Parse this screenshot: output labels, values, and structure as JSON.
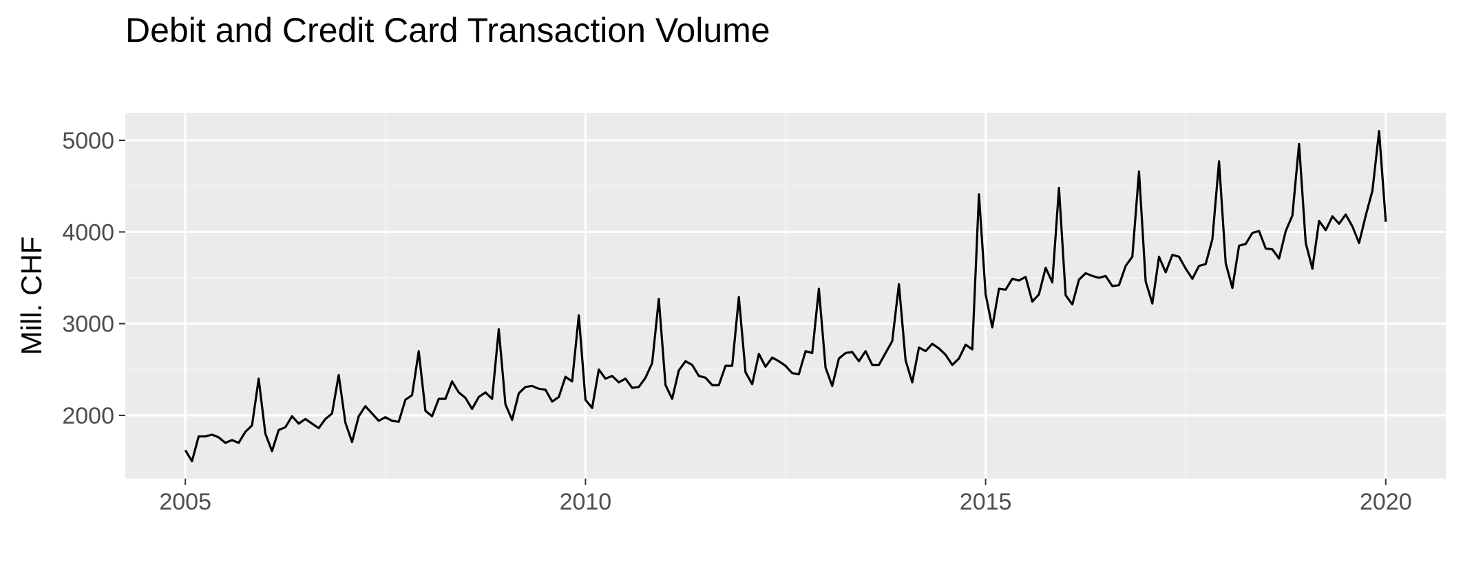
{
  "chart_data": {
    "type": "line",
    "title": "Debit and Credit Card Transaction Volume",
    "xlabel": "",
    "ylabel": "Mill. CHF",
    "x_ticks": [
      2005,
      2010,
      2015,
      2020
    ],
    "y_ticks": [
      2000,
      3000,
      4000,
      5000
    ],
    "xlim": [
      2004.25,
      2020.75
    ],
    "ylim": [
      1310,
      5300
    ],
    "grid": true,
    "legend": "none",
    "colors": {
      "panel_background": "#ebebeb",
      "grid_major": "#ffffff",
      "grid_minor": "#f5f5f5",
      "line": "#000000",
      "tick_label": "#4d4d4d",
      "tick_mark": "#333333"
    },
    "series": [
      {
        "start": "2005-01",
        "frequency": "monthly",
        "values": [
          1620,
          1500,
          1770,
          1770,
          1790,
          1760,
          1700,
          1730,
          1700,
          1820,
          1890,
          2400,
          1800,
          1610,
          1840,
          1870,
          1990,
          1910,
          1960,
          1910,
          1860,
          1960,
          2020,
          2440,
          1920,
          1710,
          1990,
          2100,
          2020,
          1940,
          1980,
          1940,
          1930,
          2170,
          2220,
          2700,
          2050,
          1990,
          2180,
          2180,
          2370,
          2250,
          2190,
          2070,
          2200,
          2250,
          2180,
          2940,
          2120,
          1950,
          2240,
          2310,
          2320,
          2290,
          2280,
          2150,
          2200,
          2420,
          2370,
          3090,
          2170,
          2080,
          2500,
          2400,
          2430,
          2360,
          2400,
          2300,
          2310,
          2410,
          2570,
          3270,
          2330,
          2180,
          2490,
          2590,
          2550,
          2430,
          2410,
          2330,
          2330,
          2540,
          2540,
          3290,
          2470,
          2340,
          2670,
          2530,
          2630,
          2590,
          2540,
          2460,
          2450,
          2700,
          2680,
          3380,
          2520,
          2320,
          2620,
          2680,
          2690,
          2590,
          2700,
          2550,
          2550,
          2680,
          2810,
          3430,
          2600,
          2360,
          2740,
          2700,
          2780,
          2730,
          2660,
          2550,
          2620,
          2770,
          2720,
          4410,
          3320,
          2960,
          3380,
          3370,
          3490,
          3470,
          3510,
          3240,
          3320,
          3610,
          3450,
          4480,
          3310,
          3210,
          3480,
          3550,
          3520,
          3500,
          3520,
          3410,
          3420,
          3630,
          3730,
          4660,
          3460,
          3220,
          3730,
          3560,
          3750,
          3730,
          3600,
          3490,
          3630,
          3650,
          3920,
          4770,
          3660,
          3390,
          3850,
          3870,
          3990,
          4010,
          3820,
          3810,
          3710,
          4010,
          4180,
          4960,
          3880,
          3600,
          4120,
          4020,
          4170,
          4090,
          4190,
          4060,
          3880,
          4180,
          4450,
          5100,
          4110
        ]
      }
    ]
  }
}
